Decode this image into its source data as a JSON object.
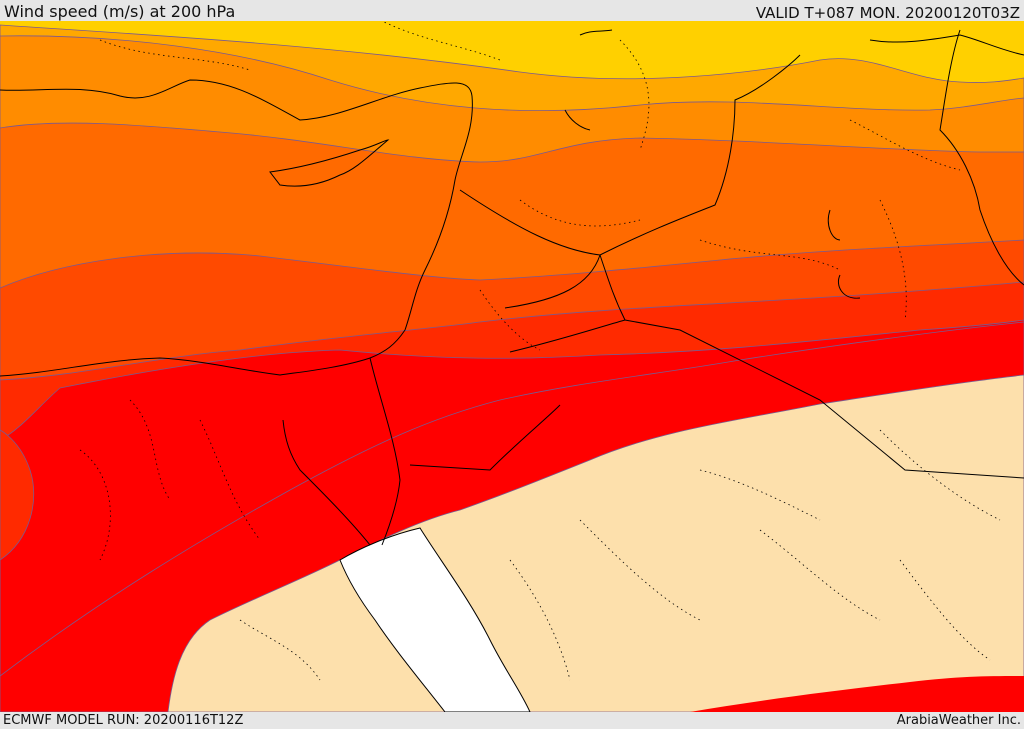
{
  "header": {
    "title": "Wind speed (m/s) at 200 hPa",
    "valid_time": "VALID T+087 MON. 20200120T03Z"
  },
  "footer": {
    "model_run": "ECMWF MODEL RUN: 20200116T12Z",
    "credit": "ArabiaWeather Inc."
  },
  "map": {
    "variable": "wind speed",
    "units": "m/s",
    "level_hPa": 200,
    "bands": [
      {
        "name": "yellow",
        "color": "#ffd000"
      },
      {
        "name": "light-orange",
        "color": "#ffa800"
      },
      {
        "name": "orange",
        "color": "#ff8c00"
      },
      {
        "name": "dark-orange",
        "color": "#ff6a00"
      },
      {
        "name": "red-orange",
        "color": "#ff4a00"
      },
      {
        "name": "orange-red",
        "color": "#ff2a00"
      },
      {
        "name": "red",
        "color": "#ff0000"
      },
      {
        "name": "calm-tan",
        "color": "#fde0ac"
      },
      {
        "name": "sea",
        "color": "#ffffff"
      }
    ]
  }
}
